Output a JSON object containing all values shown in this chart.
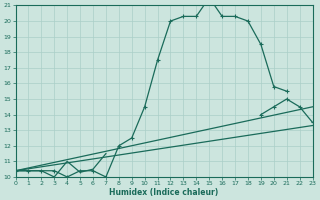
{
  "xlabel": "Humidex (Indice chaleur)",
  "xlim": [
    0,
    23
  ],
  "ylim": [
    10,
    21
  ],
  "yticks": [
    10,
    11,
    12,
    13,
    14,
    15,
    16,
    17,
    18,
    19,
    20,
    21
  ],
  "xticks": [
    0,
    1,
    2,
    3,
    4,
    5,
    6,
    7,
    8,
    9,
    10,
    11,
    12,
    13,
    14,
    15,
    16,
    17,
    18,
    19,
    20,
    21,
    22,
    23
  ],
  "background_color": "#cce5de",
  "grid_color": "#aacfc8",
  "line_color": "#1a6b5a",
  "main_curve": {
    "x": [
      0,
      1,
      2,
      3,
      4,
      5,
      6,
      7,
      8,
      9,
      10,
      11,
      12,
      13,
      14,
      15,
      16,
      17,
      18,
      19,
      20,
      21
    ],
    "y": [
      10.4,
      10.4,
      10.4,
      10.4,
      10.0,
      10.4,
      10.4,
      10.0,
      12.0,
      12.5,
      14.5,
      17.5,
      20.0,
      20.3,
      20.3,
      21.5,
      20.3,
      20.3,
      20.0,
      18.5,
      15.8,
      15.5
    ]
  },
  "bottom_wiggly": {
    "x": [
      0,
      1,
      2,
      3,
      4,
      5,
      6,
      7
    ],
    "y": [
      10.4,
      10.4,
      10.4,
      10.0,
      11.0,
      10.3,
      10.5,
      11.5
    ]
  },
  "straight_line1": {
    "x": [
      0,
      23
    ],
    "y": [
      10.4,
      13.3
    ]
  },
  "straight_line2": {
    "x": [
      0,
      23
    ],
    "y": [
      10.4,
      14.5
    ]
  },
  "right_curve": {
    "x": [
      19,
      20,
      21,
      22,
      23
    ],
    "y": [
      14.0,
      14.5,
      15.0,
      14.5,
      13.5
    ]
  }
}
